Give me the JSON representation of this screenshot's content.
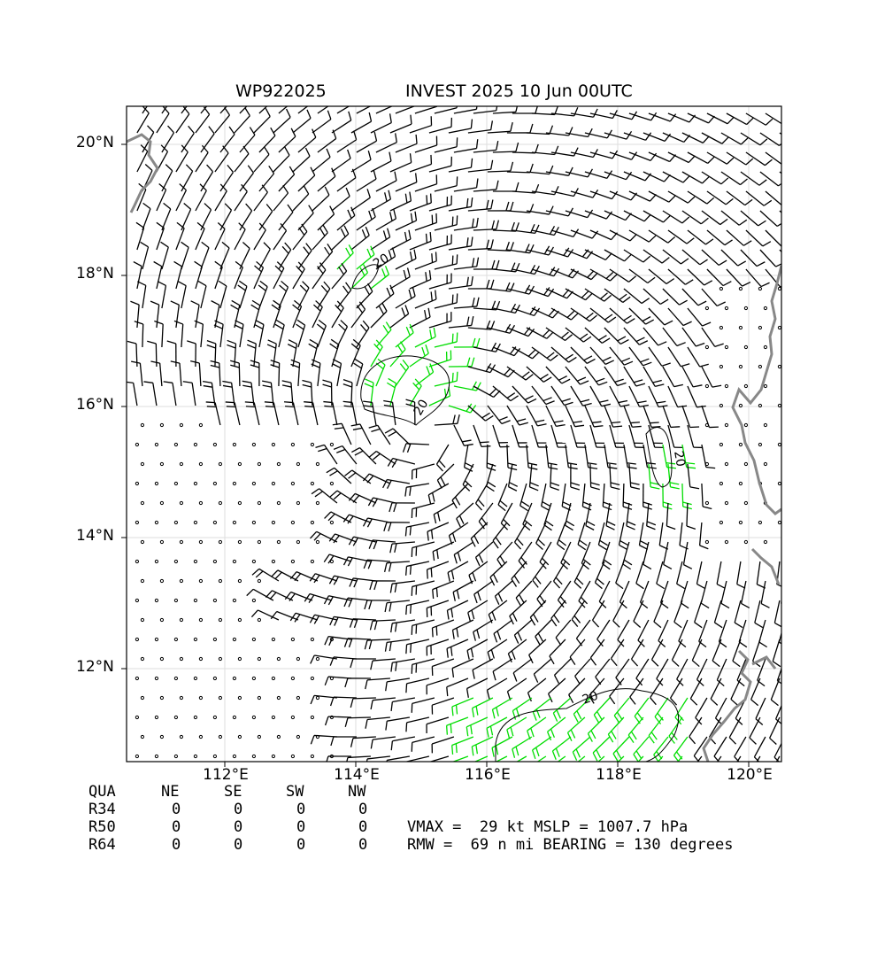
{
  "header": {
    "storm_id": "WP922025",
    "storm_title": "INVEST 2025 10 Jun 00UTC"
  },
  "map": {
    "lat_labels": [
      "20°N",
      "18°N",
      "16°N",
      "14°N",
      "12°N"
    ],
    "lon_labels": [
      "112°E",
      "114°E",
      "116°E",
      "118°E",
      "120°E"
    ],
    "contour_label": "20",
    "colors": {
      "barb_default": "#000000",
      "barb_strong": "#00dd00",
      "coastline": "#888888",
      "contour": "#000000",
      "grid": "#dddddd"
    }
  },
  "wind_radii": {
    "headers": [
      "QUA",
      "NE",
      "SE",
      "SW",
      "NW"
    ],
    "rows": [
      {
        "label": "R34",
        "values": [
          "0",
          "0",
          "0",
          "0"
        ]
      },
      {
        "label": "R50",
        "values": [
          "0",
          "0",
          "0",
          "0"
        ]
      },
      {
        "label": "R64",
        "values": [
          "0",
          "0",
          "0",
          "0"
        ]
      }
    ]
  },
  "stats": {
    "line1": "VMAX =  29 kt MSLP = 1007.7 hPa",
    "line2": "RMW =  69 n mi BEARING = 130 degrees"
  }
}
